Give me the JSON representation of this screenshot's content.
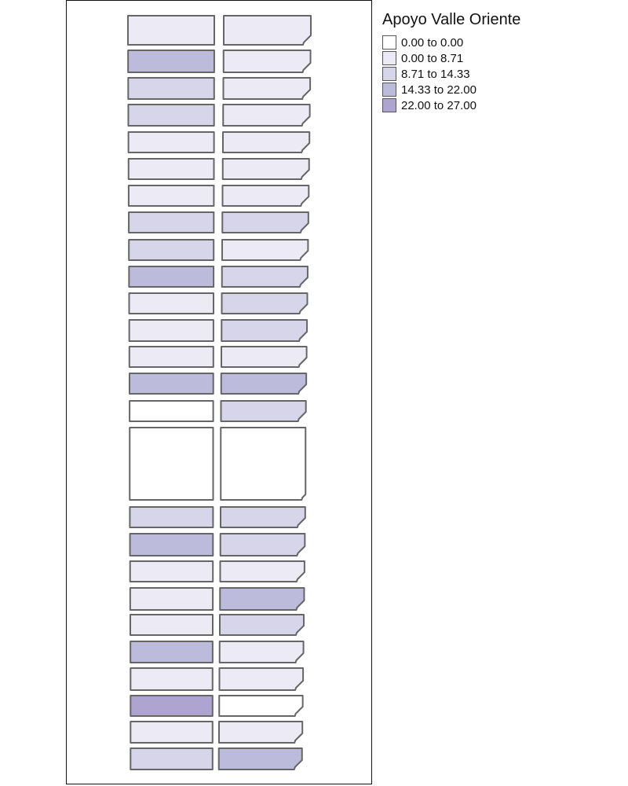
{
  "legend": {
    "title": "Apoyo Valle Oriente",
    "classes": [
      {
        "label": "0.00 to 0.00",
        "color": "#ffffff"
      },
      {
        "label": "0.00 to 8.71",
        "color": "#ebeaf5"
      },
      {
        "label": "8.71 to 14.33",
        "color": "#d6d5ea"
      },
      {
        "label": "14.33 to 22.00",
        "color": "#bdbbdb"
      },
      {
        "label": "22.00 to 27.00",
        "color": "#ada4d0"
      }
    ]
  },
  "map": {
    "stroke_color": "#666666",
    "rows": [
      {
        "left_class": 1,
        "right_class": 1
      },
      {
        "left_class": 3,
        "right_class": 1
      },
      {
        "left_class": 2,
        "right_class": 1
      },
      {
        "left_class": 2,
        "right_class": 1
      },
      {
        "left_class": 1,
        "right_class": 1
      },
      {
        "left_class": 1,
        "right_class": 1
      },
      {
        "left_class": 1,
        "right_class": 1
      },
      {
        "left_class": 2,
        "right_class": 2
      },
      {
        "left_class": 2,
        "right_class": 1
      },
      {
        "left_class": 3,
        "right_class": 2
      },
      {
        "left_class": 1,
        "right_class": 2
      },
      {
        "left_class": 1,
        "right_class": 2
      },
      {
        "left_class": 1,
        "right_class": 1
      },
      {
        "left_class": 3,
        "right_class": 3
      },
      {
        "left_class": 0,
        "right_class": 2
      },
      {
        "left_class": 0,
        "right_class": 0
      },
      {
        "left_class": 2,
        "right_class": 2
      },
      {
        "left_class": 3,
        "right_class": 2
      },
      {
        "left_class": 1,
        "right_class": 1
      },
      {
        "left_class": 1,
        "right_class": 3
      },
      {
        "left_class": 1,
        "right_class": 2
      },
      {
        "left_class": 3,
        "right_class": 1
      },
      {
        "left_class": 1,
        "right_class": 1
      },
      {
        "left_class": 4,
        "right_class": 0
      },
      {
        "left_class": 1,
        "right_class": 1
      },
      {
        "left_class": 2,
        "right_class": 3
      }
    ]
  }
}
